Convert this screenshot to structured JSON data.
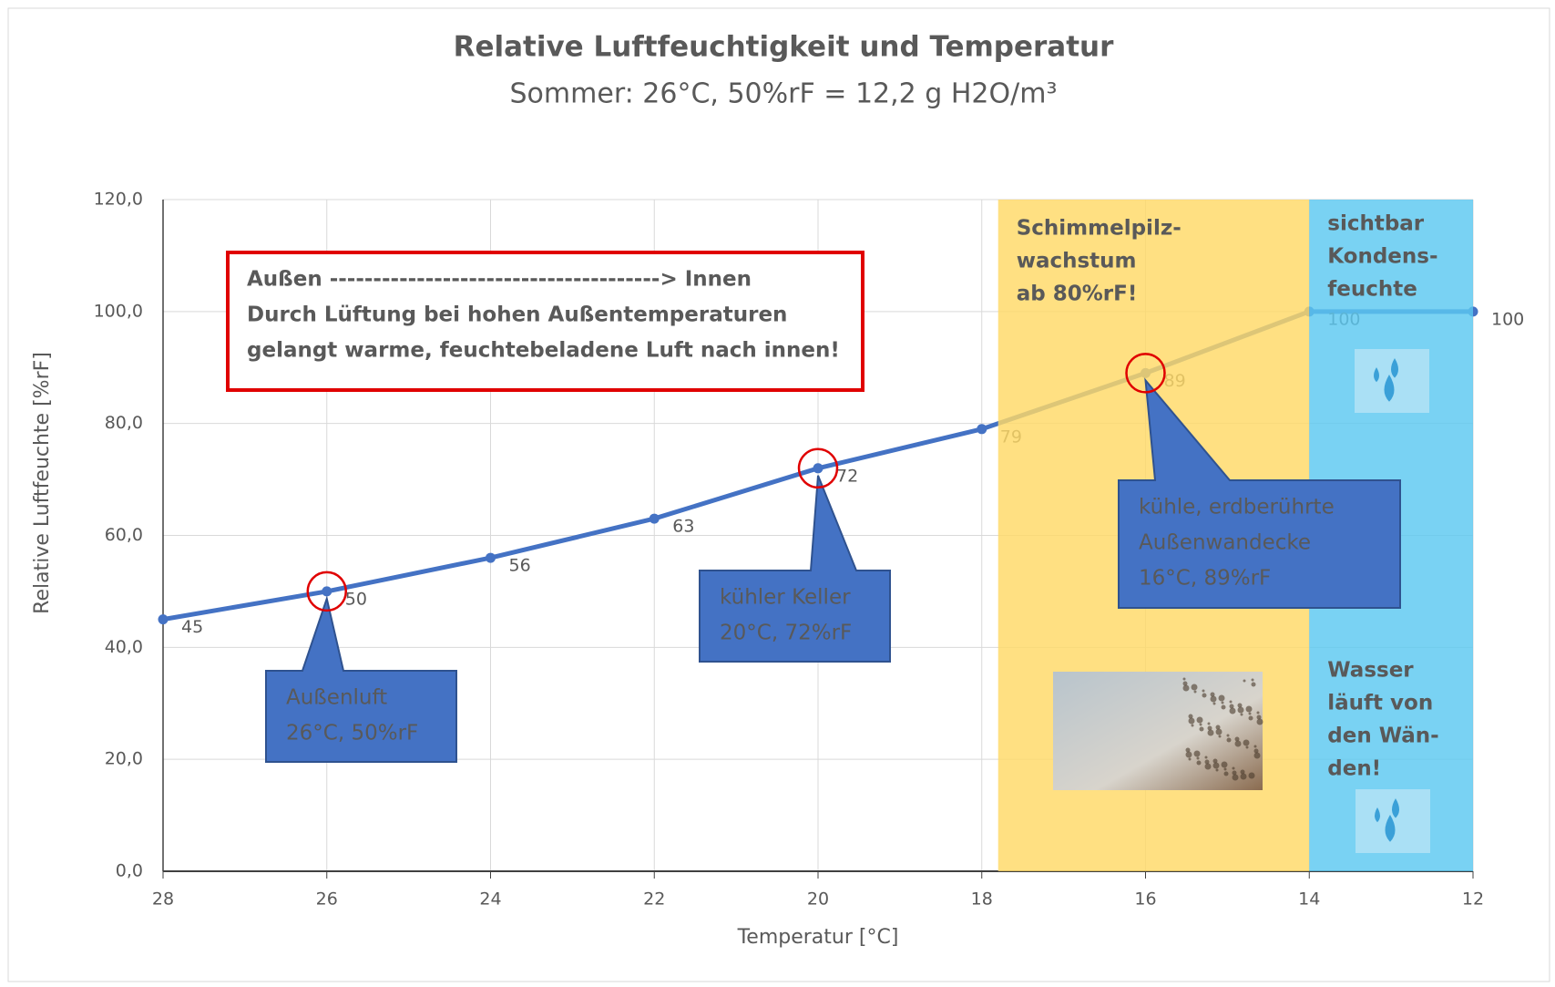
{
  "chart_data": {
    "type": "line",
    "title": "Relative Luftfeuchtigkeit und Temperatur",
    "subtitle": "Sommer:  26°C, 50%rF = 12,2 g H2O/m³",
    "x_label": "Temperatur [°C]",
    "y_label": "Relative Luftfeuchte [%rF]",
    "x": [
      28,
      26,
      24,
      22,
      20,
      18,
      16,
      14,
      12
    ],
    "values": [
      45,
      50,
      56,
      63,
      72,
      79,
      89,
      100,
      100
    ],
    "color": "#4472c4",
    "xlim": [
      28,
      12
    ],
    "xticks": [
      28,
      26,
      24,
      22,
      20,
      18,
      16,
      14,
      12
    ],
    "ylim": [
      0,
      120
    ],
    "yticks": [
      {
        "value": 0,
        "label": "0,0"
      },
      {
        "value": 20,
        "label": "20,0"
      },
      {
        "value": 40,
        "label": "40,0"
      },
      {
        "value": 60,
        "label": "60,0"
      },
      {
        "value": 80,
        "label": "80,0"
      },
      {
        "value": 100,
        "label": "100,0"
      },
      {
        "value": 120,
        "label": "120,0"
      }
    ],
    "grid": true,
    "bands": [
      {
        "from": 17.8,
        "to": 14,
        "color": "#ffd966",
        "texts": [
          [
            "Schimmelpilz-",
            "wachstum",
            "ab 80%rF!"
          ]
        ]
      },
      {
        "from": 14,
        "to": 12,
        "color": "#5bc8f0",
        "texts": [
          [
            "sichtbar",
            "Kondens-",
            "feuchte"
          ],
          [
            "Wasser",
            "läuft von",
            "den Wän-",
            "den!"
          ]
        ]
      }
    ],
    "note": [
      "Außen --------------------------------------> Innen",
      "Durch Lüftung bei hohen Außentemperaturen",
      "gelangt warme, feuchtebeladene Luft nach innen!"
    ],
    "callouts": [
      [
        "Außenluft",
        "26°C, 50%rF"
      ],
      [
        "kühler  Keller",
        "20°C, 72%rF"
      ],
      [
        "kühle,  erdberührte",
        "Außenwandecke",
        "16°C, 89%rF"
      ]
    ]
  }
}
